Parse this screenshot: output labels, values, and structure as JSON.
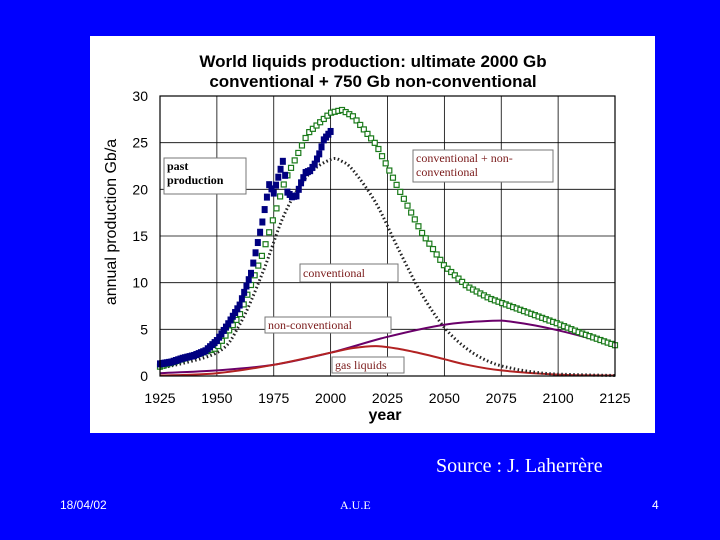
{
  "slide": {
    "source": "Source : J. Laherrère",
    "date": "18/04/02",
    "organization": "A.U.E",
    "page_number": "4"
  },
  "chart_data": {
    "type": "line",
    "title_line1": "World liquids production: ultimate 2000 Gb",
    "title_line2": "conventional + 750 Gb non-conventional",
    "xlabel": "year",
    "ylabel": "annual production  Gb/a",
    "xlim": [
      1925,
      2125
    ],
    "ylim": [
      0,
      30
    ],
    "x_ticks": [
      1925,
      1950,
      1975,
      2000,
      2025,
      2050,
      2075,
      2100,
      2125
    ],
    "y_ticks": [
      0,
      5,
      10,
      15,
      20,
      25,
      30
    ],
    "grid": true,
    "series": [
      {
        "name": "past production",
        "label": "past production",
        "style": "filled-squares",
        "color": "#000080",
        "points": [
          [
            1925,
            1.3
          ],
          [
            1930,
            1.5
          ],
          [
            1935,
            1.9
          ],
          [
            1940,
            2.2
          ],
          [
            1945,
            2.7
          ],
          [
            1950,
            3.8
          ],
          [
            1955,
            5.6
          ],
          [
            1960,
            7.6
          ],
          [
            1965,
            11.0
          ],
          [
            1970,
            16.5
          ],
          [
            1973,
            20.5
          ],
          [
            1975,
            19.6
          ],
          [
            1977,
            21.3
          ],
          [
            1979,
            23.0
          ],
          [
            1980,
            21.5
          ],
          [
            1981,
            19.7
          ],
          [
            1983,
            19.2
          ],
          [
            1985,
            19.3
          ],
          [
            1987,
            20.7
          ],
          [
            1989,
            21.8
          ],
          [
            1991,
            22.0
          ],
          [
            1993,
            22.7
          ],
          [
            1995,
            23.8
          ],
          [
            1997,
            25.3
          ],
          [
            2000,
            26.2
          ]
        ]
      },
      {
        "name": "conventional + non-conventional",
        "label": "conventional + non-conventional",
        "style": "open-squares",
        "color": "#1a7a1a",
        "points": [
          [
            1925,
            1.0
          ],
          [
            1950,
            3.0
          ],
          [
            1960,
            6.5
          ],
          [
            1970,
            13.0
          ],
          [
            1980,
            21.0
          ],
          [
            1990,
            26.0
          ],
          [
            2000,
            28.2
          ],
          [
            2005,
            28.5
          ],
          [
            2010,
            27.8
          ],
          [
            2020,
            24.8
          ],
          [
            2030,
            20.0
          ],
          [
            2040,
            15.4
          ],
          [
            2050,
            11.8
          ],
          [
            2060,
            9.6
          ],
          [
            2070,
            8.3
          ],
          [
            2080,
            7.4
          ],
          [
            2090,
            6.5
          ],
          [
            2100,
            5.6
          ],
          [
            2110,
            4.6
          ],
          [
            2125,
            3.3
          ]
        ]
      },
      {
        "name": "conventional",
        "label": "conventional",
        "style": "dotted",
        "color": "#222222",
        "points": [
          [
            1925,
            0.8
          ],
          [
            1950,
            2.5
          ],
          [
            1960,
            5.5
          ],
          [
            1970,
            11.0
          ],
          [
            1980,
            17.5
          ],
          [
            1990,
            21.5
          ],
          [
            2000,
            23.2
          ],
          [
            2005,
            23.0
          ],
          [
            2010,
            22.0
          ],
          [
            2020,
            18.5
          ],
          [
            2030,
            13.5
          ],
          [
            2040,
            8.8
          ],
          [
            2050,
            5.2
          ],
          [
            2060,
            2.9
          ],
          [
            2070,
            1.5
          ],
          [
            2080,
            0.8
          ],
          [
            2090,
            0.4
          ],
          [
            2100,
            0.2
          ],
          [
            2125,
            0.05
          ]
        ]
      },
      {
        "name": "non-conventional",
        "label": "non-conventional",
        "style": "solid",
        "color": "#6a006a",
        "points": [
          [
            1925,
            0.3
          ],
          [
            1950,
            0.6
          ],
          [
            1975,
            1.2
          ],
          [
            2000,
            2.5
          ],
          [
            2025,
            4.2
          ],
          [
            2050,
            5.5
          ],
          [
            2070,
            5.9
          ],
          [
            2080,
            5.8
          ],
          [
            2100,
            4.9
          ],
          [
            2125,
            3.3
          ]
        ]
      },
      {
        "name": "gas liquids",
        "label": "gas liquids",
        "style": "solid",
        "color": "#b22222",
        "points": [
          [
            1925,
            0.05
          ],
          [
            1950,
            0.3
          ],
          [
            1975,
            1.2
          ],
          [
            2000,
            2.5
          ],
          [
            2010,
            3.0
          ],
          [
            2020,
            3.2
          ],
          [
            2030,
            2.9
          ],
          [
            2040,
            2.4
          ],
          [
            2050,
            1.8
          ],
          [
            2060,
            1.2
          ],
          [
            2075,
            0.6
          ],
          [
            2100,
            0.15
          ],
          [
            2125,
            0.05
          ]
        ]
      }
    ]
  }
}
